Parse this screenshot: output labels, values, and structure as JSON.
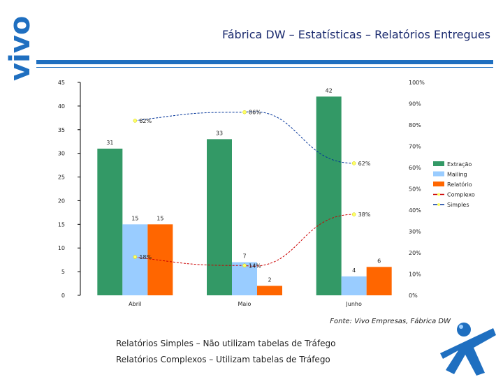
{
  "brand": "vivo",
  "title": "Fábrica DW – Estatísticas – Relatórios Entregues",
  "source": "Fonte: Vivo Empresas, Fábrica DW",
  "notes": [
    "Relatórios Simples – Não utilizam tabelas de Tráfego",
    "Relatórios Complexos – Utilizam tabelas de Tráfego"
  ],
  "colors": {
    "extracao": "#339966",
    "mailing": "#99ccff",
    "relatorio": "#ff6600",
    "complexo": "#cc0000",
    "simples": "#003399",
    "marker": "#ffff66",
    "brand": "#1f6fc0"
  },
  "chart_data": {
    "type": "bar",
    "categories": [
      "Abril",
      "Maio",
      "Junho"
    ],
    "series": [
      {
        "name": "Extração",
        "values": [
          31,
          33,
          42
        ],
        "labels": [
          "31",
          "33",
          "42"
        ]
      },
      {
        "name": "Mailing",
        "values": [
          15,
          7,
          4
        ],
        "labels": [
          "15",
          "7",
          "4"
        ]
      },
      {
        "name": "Relatório",
        "values": [
          15,
          2,
          6
        ],
        "labels": [
          "15",
          "2",
          "6"
        ]
      }
    ],
    "line_series": [
      {
        "name": "Complexo",
        "values": [
          18,
          14,
          38
        ],
        "labels": [
          "18%",
          "14%",
          "38%"
        ],
        "axis": "right"
      },
      {
        "name": "Simples",
        "values": [
          82,
          86,
          62
        ],
        "labels": [
          "82%",
          "86%",
          "62%"
        ],
        "axis": "right"
      }
    ],
    "ylim": [
      0,
      45
    ],
    "yticks": [
      "0",
      "5",
      "10",
      "15",
      "20",
      "25",
      "30",
      "35",
      "40",
      "45"
    ],
    "y2lim": [
      0,
      100
    ],
    "y2ticks": [
      "0%",
      "10%",
      "20%",
      "30%",
      "40%",
      "50%",
      "60%",
      "70%",
      "80%",
      "90%",
      "100%"
    ],
    "legend": [
      "Extração",
      "Mailing",
      "Relatório",
      "Complexo",
      "Simples"
    ],
    "legend_position": "right",
    "grid": false
  }
}
